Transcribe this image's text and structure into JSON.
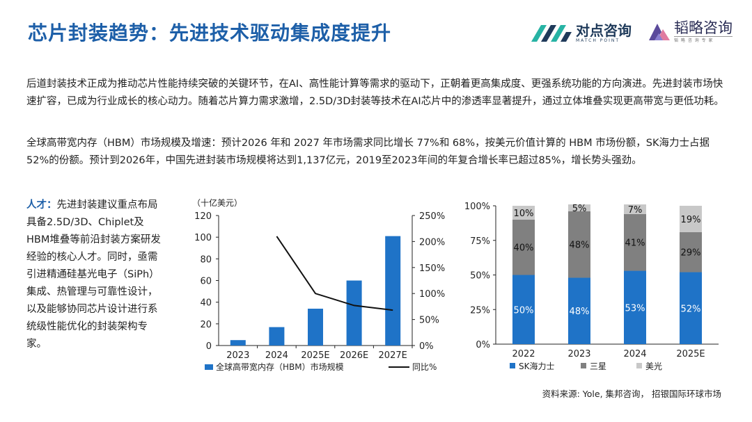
{
  "header": {
    "title": "芯片封装趋势：先进技术驱动集成度提升",
    "logo_primary": "对点咨询",
    "logo_primary_en": "MATCH POINT",
    "logo_secondary": "韬略咨询",
    "logo_secondary_sub": "韬 略 咨 询 专 家"
  },
  "paragraphs": [
    "后道封装技术正成为推动芯片性能持续突破的关键环节，在AI、高性能计算等需求的驱动下，正朝着更高集成度、更强系统功能的方向演进。先进封装市场快速扩容，已成为行业成长的核心动力。随着芯片算力需求激增，2.5D/3D封装等技术在AI芯片中的渗透率显著提升，通过立体堆叠实现更高带宽与更低功耗。",
    "全球高带宽内存（HBM）市场规模及增速：预计2026 年和 2027 年市场需求同比增长 77%和 68%，按美元价值计算的 HBM 市场份额，SK海力士占据 52%的份额。预计到2026年，中国先进封装市场规模将达到1,137亿元，2019至2023年间的年复合增长率已超过85%，增长势头强劲。"
  ],
  "talent": {
    "label": "人才：",
    "text": "先进封装建议重点布局具备2.5D/3D、Chiplet及HBM堆叠等前沿封装方案研发经验的核心人才。同时，亟需引进精通硅基光电子（SiPh）集成、热管理与可靠性设计，以及能够协同芯片设计进行系统级性能优化的封装架构专家。"
  },
  "source": "资料来源: Yole, 集邦咨询，  招银国际环球市场",
  "colors": {
    "blue": "#1f73c7",
    "dark_gray": "#808080",
    "light_gray": "#c8c8c8",
    "title_blue": "#1d5fa8",
    "logo_teal": "#27b3a4",
    "logo_purple": "#5b4a9b"
  },
  "chart_data": [
    {
      "type": "bar",
      "unit_label": "（十亿美元）",
      "categories": [
        "2023",
        "2024",
        "2025E",
        "2026E",
        "2027E"
      ],
      "series": [
        {
          "name": "全球高带宽内存（HBM）市场规模",
          "type": "bar",
          "axis": "left",
          "values": [
            5,
            17,
            34,
            60,
            101
          ]
        },
        {
          "name": "同比%",
          "type": "line",
          "axis": "right",
          "values": [
            null,
            210,
            100,
            77,
            68
          ]
        }
      ],
      "y_left": {
        "range": [
          0,
          120
        ],
        "ticks": [
          "0",
          "20",
          "40",
          "60",
          "80",
          "100",
          "120"
        ]
      },
      "y_right": {
        "range": [
          0,
          250
        ],
        "ticks": [
          "0%",
          "50%",
          "100%",
          "150%",
          "200%",
          "250%"
        ]
      },
      "legend": [
        "全球高带宽内存（HBM）市场规模",
        "同比%"
      ]
    },
    {
      "type": "bar",
      "stacked": true,
      "categories": [
        "2022",
        "2023",
        "2024",
        "2025E"
      ],
      "series": [
        {
          "name": "SK海力士",
          "values": [
            50,
            48,
            53,
            52
          ],
          "labels": [
            "50%",
            "48%",
            "53%",
            "52%"
          ]
        },
        {
          "name": "三星",
          "values": [
            40,
            48,
            41,
            29
          ],
          "labels": [
            "40%",
            "48%",
            "41%",
            "29%"
          ]
        },
        {
          "name": "美光",
          "values": [
            10,
            5,
            7,
            19
          ],
          "labels": [
            "10%",
            "5%",
            "7%",
            "19%"
          ]
        }
      ],
      "y": {
        "range": [
          0,
          100
        ],
        "ticks": [
          "0%",
          "25%",
          "50%",
          "75%",
          "100%"
        ]
      },
      "legend": [
        "SK海力士",
        "三星",
        "美光"
      ]
    }
  ]
}
